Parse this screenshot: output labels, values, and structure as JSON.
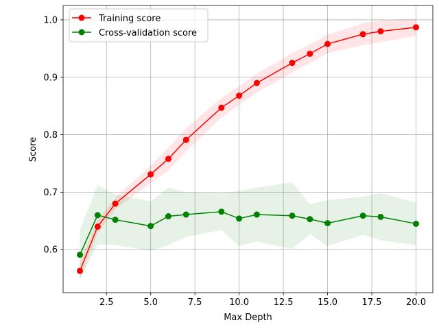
{
  "chart_data": {
    "type": "line",
    "title": "",
    "xlabel": "Max Depth",
    "ylabel": "Score",
    "xlim": [
      0.05,
      20.95
    ],
    "ylim": [
      0.525,
      1.025
    ],
    "xticks": [
      2.5,
      5.0,
      7.5,
      10.0,
      12.5,
      15.0,
      17.5,
      20.0
    ],
    "xtick_labels": [
      "2.5",
      "5.0",
      "7.5",
      "10.0",
      "12.5",
      "15.0",
      "17.5",
      "20.0"
    ],
    "yticks": [
      0.6,
      0.7,
      0.8,
      0.9,
      1.0
    ],
    "ytick_labels": [
      "0.6",
      "0.7",
      "0.8",
      "0.9",
      "1.0"
    ],
    "grid": true,
    "legend_position": "upper-left",
    "x": [
      1,
      2,
      3,
      5,
      6,
      7,
      9,
      10,
      11,
      13,
      14,
      15,
      17,
      18,
      20
    ],
    "series": [
      {
        "name": "Training score",
        "color": "#ff0000",
        "band_color": "#ff0000",
        "values": [
          0.563,
          0.64,
          0.68,
          0.731,
          0.758,
          0.791,
          0.847,
          0.868,
          0.89,
          0.925,
          0.941,
          0.958,
          0.975,
          0.98,
          0.987
        ],
        "lower": [
          0.548,
          0.628,
          0.67,
          0.716,
          0.738,
          0.771,
          0.83,
          0.852,
          0.874,
          0.908,
          0.925,
          0.942,
          0.956,
          0.961,
          0.972
        ],
        "upper": [
          0.578,
          0.652,
          0.69,
          0.746,
          0.778,
          0.811,
          0.864,
          0.884,
          0.906,
          0.942,
          0.957,
          0.974,
          0.994,
          0.999,
          1.002
        ]
      },
      {
        "name": "Cross-validation score",
        "color": "#008000",
        "band_color": "#008000",
        "values": [
          0.591,
          0.66,
          0.652,
          0.641,
          0.658,
          0.661,
          0.666,
          0.654,
          0.661,
          0.659,
          0.653,
          0.646,
          0.659,
          0.657,
          0.645
        ],
        "lower": [
          0.548,
          0.609,
          0.608,
          0.598,
          0.608,
          0.622,
          0.634,
          0.606,
          0.614,
          0.601,
          0.627,
          0.606,
          0.626,
          0.616,
          0.608
        ],
        "upper": [
          0.634,
          0.712,
          0.696,
          0.684,
          0.708,
          0.7,
          0.698,
          0.702,
          0.708,
          0.717,
          0.679,
          0.686,
          0.692,
          0.698,
          0.682
        ]
      }
    ]
  }
}
